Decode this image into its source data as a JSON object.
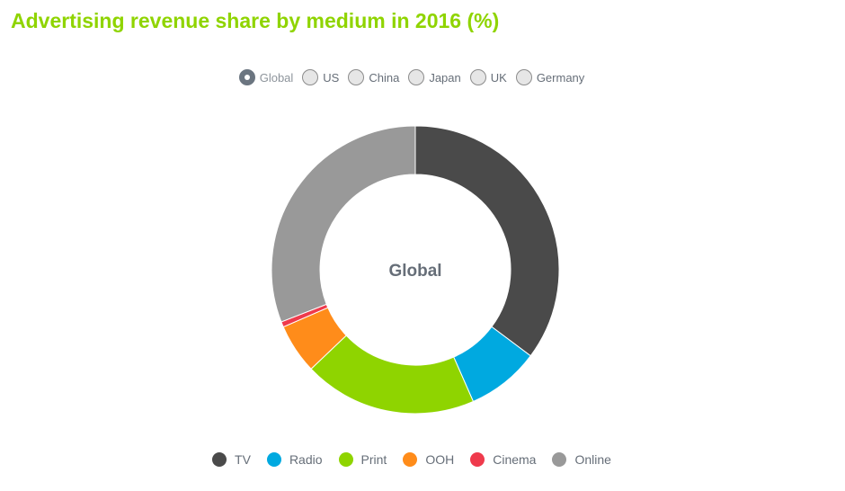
{
  "title": "Advertising revenue share by medium in 2016 (%)",
  "regions": [
    {
      "label": "Global",
      "selected": true
    },
    {
      "label": "US",
      "selected": false
    },
    {
      "label": "China",
      "selected": false
    },
    {
      "label": "Japan",
      "selected": false
    },
    {
      "label": "UK",
      "selected": false
    },
    {
      "label": "Germany",
      "selected": false
    }
  ],
  "chart_data": {
    "type": "pie",
    "variant": "donut",
    "title": "Advertising revenue share by medium in 2016 (%)",
    "center_label": "Global",
    "categories": [
      "TV",
      "Radio",
      "Print",
      "OOH",
      "Cinema",
      "Online"
    ],
    "values": [
      35.2,
      8.2,
      19.5,
      5.6,
      0.6,
      30.9
    ],
    "colors": [
      "#4a4a4a",
      "#00a9e0",
      "#8fd400",
      "#ff8c1a",
      "#ef3a4c",
      "#999999"
    ],
    "legend_position": "bottom"
  }
}
